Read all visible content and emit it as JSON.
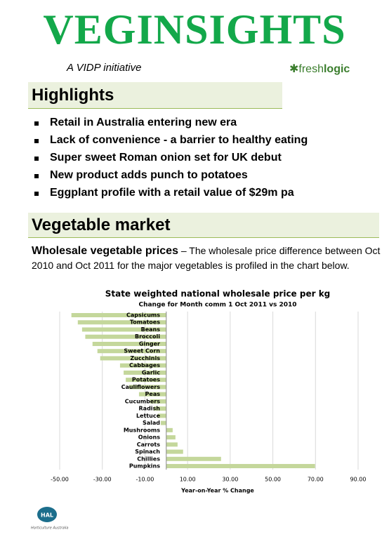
{
  "header": {
    "title": "VEGINSIGHTS",
    "tagline": "A VIDP initiative",
    "logo": {
      "fresh": "fresh",
      "logic": "logic"
    }
  },
  "highlights": {
    "heading": "Highlights",
    "items": [
      "Retail in Australia entering new era",
      "Lack of convenience - a barrier to healthy eating",
      "Super sweet Roman onion set for UK debut",
      "New product adds punch to potatoes",
      "Eggplant profile with a retail value of $29m pa"
    ]
  },
  "market": {
    "heading": "Vegetable market",
    "lead": "Wholesale vegetable prices",
    "text": "– The wholesale price difference between Oct 2010 and Oct 2011 for the major vegetables is profiled in the chart below."
  },
  "chart_data": {
    "type": "bar",
    "orientation": "horizontal",
    "title": "State weighted national wholesale price per kg",
    "subtitle": "Change for Month comm 1 Oct 2011 vs 2010",
    "xlabel": "Year-on-Year % Change",
    "categories": [
      "Capsicums",
      "Tomatoes",
      "Beans",
      "Broccoli",
      "Ginger",
      "Sweet Corn",
      "Zucchinis",
      "Cabbages",
      "Garlic",
      "Potatoes",
      "Cauliflowers",
      "Peas",
      "Cucumbers",
      "Radish",
      "Lettuce",
      "Salad",
      "Mushrooms",
      "Onions",
      "Carrots",
      "Spinach",
      "Chillies",
      "Pumpkins"
    ],
    "values": [
      -44.5,
      -41.5,
      -39.5,
      -38,
      -34.6,
      -32.3,
      -31,
      -21.7,
      -20,
      -19,
      -17.5,
      -12.8,
      -7.6,
      -5.9,
      -4,
      -2.6,
      3,
      4.3,
      5.3,
      7.9,
      25.7,
      69.8
    ],
    "color": "#c4d79b",
    "xlim": [
      -50,
      90
    ],
    "xticks": [
      {
        "value": -50,
        "label": "-50.00"
      },
      {
        "value": -30,
        "label": "-30.00"
      },
      {
        "value": -10,
        "label": "-10.00"
      },
      {
        "value": 10,
        "label": "10.00"
      },
      {
        "value": 30,
        "label": "30.00"
      },
      {
        "value": 50,
        "label": "50.00"
      },
      {
        "value": 70,
        "label": "70.00"
      },
      {
        "value": 90,
        "label": "90.00"
      }
    ],
    "grid": true
  },
  "footer": {
    "logo": "HAL",
    "org": "Horticulture Australia"
  }
}
